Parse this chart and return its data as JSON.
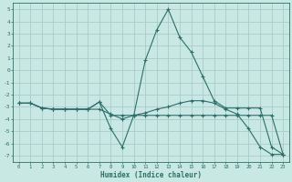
{
  "xlabel": "Humidex (Indice chaleur)",
  "bg_color": "#c8e8e4",
  "grid_color": "#a8cccc",
  "line_color": "#2a7068",
  "xlim": [
    -0.5,
    23.5
  ],
  "ylim": [
    -7.5,
    5.5
  ],
  "xticks": [
    0,
    1,
    2,
    3,
    4,
    5,
    6,
    7,
    8,
    9,
    10,
    11,
    12,
    13,
    14,
    15,
    16,
    17,
    18,
    19,
    20,
    21,
    22,
    23
  ],
  "yticks": [
    -7,
    -6,
    -5,
    -4,
    -3,
    -2,
    -1,
    0,
    1,
    2,
    3,
    4,
    5
  ],
  "series": {
    "line1_x": [
      0,
      1,
      2,
      3,
      4,
      5,
      6,
      7,
      8,
      9,
      10,
      11,
      12,
      13,
      14,
      15,
      16,
      17,
      18,
      19,
      20,
      21,
      22,
      23
    ],
    "line1_y": [
      -2.7,
      -2.7,
      -3.1,
      -3.2,
      -3.2,
      -3.2,
      -3.2,
      -2.6,
      -3.7,
      -3.7,
      -3.7,
      -3.7,
      -3.7,
      -3.7,
      -3.7,
      -3.7,
      -3.7,
      -3.7,
      -3.7,
      -3.7,
      -3.7,
      -3.7,
      -3.7,
      -6.9
    ],
    "line2_x": [
      0,
      1,
      2,
      3,
      4,
      5,
      6,
      7,
      8,
      9,
      10,
      11,
      12,
      13,
      14,
      15,
      16,
      17,
      18,
      19,
      20,
      21,
      22,
      23
    ],
    "line2_y": [
      -2.7,
      -2.7,
      -3.1,
      -3.2,
      -3.2,
      -3.2,
      -3.2,
      -2.6,
      -4.8,
      -6.3,
      -3.7,
      0.8,
      3.3,
      5.0,
      2.7,
      1.5,
      -0.5,
      -2.5,
      -3.1,
      -3.1,
      -3.1,
      -3.1,
      -6.3,
      -6.9
    ],
    "line3_x": [
      0,
      1,
      2,
      3,
      4,
      5,
      6,
      7,
      8,
      9,
      10,
      11,
      12,
      13,
      14,
      15,
      16,
      17,
      18,
      19,
      20,
      21,
      22,
      23
    ],
    "line3_y": [
      -2.7,
      -2.7,
      -3.1,
      -3.2,
      -3.2,
      -3.2,
      -3.2,
      -3.2,
      -3.6,
      -4.0,
      -3.7,
      -3.5,
      -3.2,
      -3.0,
      -2.7,
      -2.5,
      -2.5,
      -2.7,
      -3.2,
      -3.6,
      -4.8,
      -6.3,
      -6.9,
      -6.9
    ]
  }
}
